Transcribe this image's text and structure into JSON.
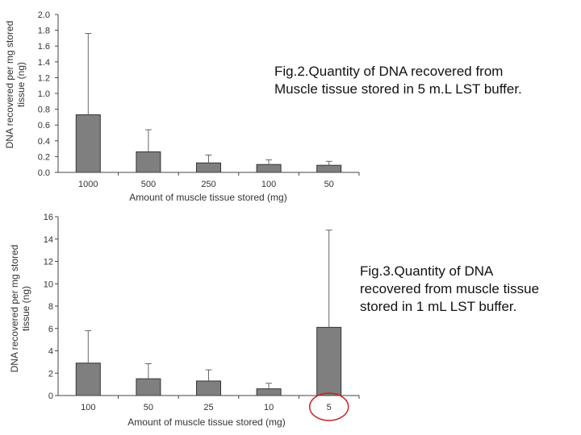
{
  "chart_data": [
    {
      "type": "bar",
      "title": "Fig.2.Quantity of DNA recovered from Muscle tissue stored in 5 m.L LST buffer.",
      "caption_lines": [
        "Fig.2.Quantity of DNA recovered from",
        "Muscle tissue stored in 5 m.L LST buffer."
      ],
      "xlabel": "Amount of muscle tissue stored (mg)",
      "ylabel_lines": [
        "DNA recovered per mg stored",
        "tissue (ng)"
      ],
      "categories": [
        "1000",
        "500",
        "250",
        "100",
        "50"
      ],
      "series": [
        {
          "values": [
            0.73,
            0.26,
            0.12,
            0.1,
            0.09
          ],
          "error": [
            1.03,
            0.28,
            0.1,
            0.06,
            0.05
          ]
        }
      ],
      "ylim": [
        0,
        2.0
      ],
      "yticks": [
        "0.0",
        "0.2",
        "0.4",
        "0.6",
        "0.8",
        "1.0",
        "1.2",
        "1.4",
        "1.6",
        "1.8",
        "2.0"
      ],
      "colors": {
        "bar": "#7f7f7f",
        "stroke": "#333333"
      }
    },
    {
      "type": "bar",
      "title": "Fig.3.Quantity of DNA recovered from muscle tissue stored in 1 mL LST buffer.",
      "caption_lines": [
        "Fig.3.Quantity of DNA",
        "recovered from muscle tissue",
        "stored in 1 mL LST buffer."
      ],
      "xlabel": "Amount of muscle tissue stored (mg)",
      "ylabel_lines": [
        "DNA recovered per mg stored",
        "tissue (ng)"
      ],
      "categories": [
        "100",
        "50",
        "25",
        "10",
        "5"
      ],
      "series": [
        {
          "values": [
            2.9,
            1.5,
            1.3,
            0.6,
            6.1
          ],
          "error": [
            2.9,
            1.35,
            1.0,
            0.5,
            8.7
          ]
        }
      ],
      "ylim": [
        0,
        16
      ],
      "yticks": [
        "0",
        "2",
        "4",
        "6",
        "8",
        "10",
        "12",
        "14",
        "16"
      ],
      "highlight_category": "5",
      "colors": {
        "bar": "#7f7f7f",
        "stroke": "#333333",
        "highlight": "#cc2222"
      }
    }
  ]
}
